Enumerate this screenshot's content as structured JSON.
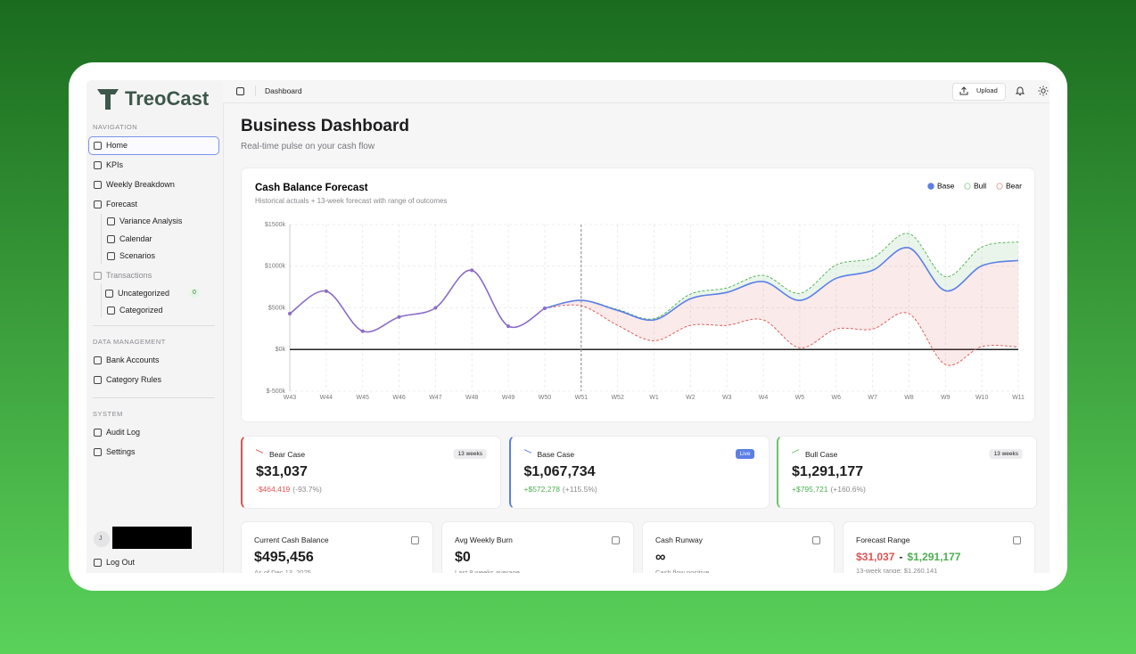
{
  "sidebar": {
    "logo": "TreoCast",
    "sections": [
      {
        "heading": "NAVIGATION",
        "items": [
          "Home",
          "KPIs",
          "Weekly Breakdown",
          "Forecast",
          "Variance Analysis",
          "Calendar",
          "Scenarios",
          "Transactions",
          "Uncategorized",
          "Categorized"
        ],
        "badge": 0
      },
      {
        "heading": "DATA MANAGEMENT",
        "items": [
          "Bank Accounts",
          "Category Rules"
        ]
      },
      {
        "heading": "SYSTEM",
        "items": [
          "Audit Log",
          "Settings"
        ]
      }
    ],
    "user_initial": "J",
    "logout": "Log Out"
  },
  "header": {
    "breadcrumb": "Dashboard",
    "upload": "Upload"
  },
  "page": {
    "title": "Business Dashboard",
    "subtitle": "Real-time pulse on your cash flow"
  },
  "chart_data": {
    "type": "line",
    "title": "Cash Balance Forecast",
    "subtitle": "Historical actuals + 13-week forecast with range of outcomes",
    "categories": [
      "W43",
      "W44",
      "W45",
      "W46",
      "W47",
      "W48",
      "W49",
      "W50",
      "W51",
      "W52",
      "W1",
      "W2",
      "W3",
      "W4",
      "W5",
      "W6",
      "W7",
      "W8",
      "W9",
      "W10",
      "W11"
    ],
    "series": [
      {
        "name": "Base",
        "color": "#5b7fe6",
        "values": [
          430,
          700,
          220,
          390,
          500,
          950,
          280,
          495,
          590,
          470,
          355,
          610,
          685,
          815,
          590,
          855,
          950,
          1220,
          705,
          1005,
          1068
        ]
      },
      {
        "name": "Bull",
        "color": "#4caf50",
        "values": [
          null,
          null,
          null,
          null,
          null,
          null,
          null,
          495,
          590,
          480,
          370,
          665,
          740,
          890,
          675,
          1015,
          1100,
          1390,
          875,
          1230,
          1291
        ]
      },
      {
        "name": "Bear",
        "color": "#d9534f",
        "values": [
          null,
          null,
          null,
          null,
          null,
          null,
          null,
          495,
          525,
          290,
          105,
          290,
          290,
          355,
          20,
          245,
          245,
          430,
          -180,
          35,
          31
        ]
      }
    ],
    "history_points": 8,
    "history_color": "#8a6cc7",
    "ylim": [
      -500,
      1500
    ],
    "yticks": [
      {
        "value": -500,
        "label": "$-500k"
      },
      {
        "value": 0,
        "label": "$0k"
      },
      {
        "value": 500,
        "label": "$500k"
      },
      {
        "value": 1000,
        "label": "$1000k"
      },
      {
        "value": 1500,
        "label": "$1500k"
      }
    ],
    "grid": true
  },
  "scenarios": [
    {
      "name": "Bear Case",
      "badge": "13 weeks",
      "value": "$31,037",
      "change": "-$464,419",
      "pct": "(-93.7%)"
    },
    {
      "name": "Base Case",
      "badge": "Live",
      "value": "$1,067,734",
      "change": "+$572,278",
      "pct": "(+115.5%)"
    },
    {
      "name": "Bull Case",
      "badge": "13 weeks",
      "value": "$1,291,177",
      "change": "+$795,721",
      "pct": "(+160.6%)"
    }
  ],
  "metrics": [
    {
      "title": "Current Cash Balance",
      "value": "$495,456",
      "note": "As of Dec 13, 2025"
    },
    {
      "title": "Avg Weekly Burn",
      "value": "$0",
      "note": "Last 8 weeks average"
    },
    {
      "title": "Cash Runway",
      "value": "∞",
      "note": "Cash flow positive"
    },
    {
      "title": "Forecast Range",
      "low": "$31,037",
      "separator": "-",
      "high": "$1,291,177",
      "note": "13-week range: $1,260,141"
    }
  ]
}
